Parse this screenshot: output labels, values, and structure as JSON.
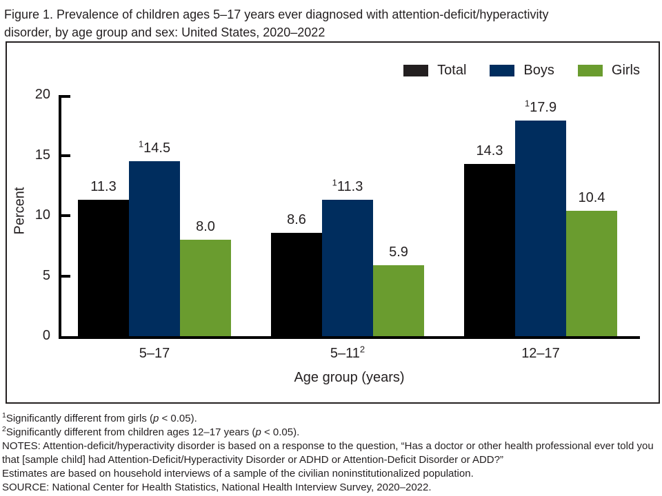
{
  "header": {
    "line1": "Figure 1. Prevalence of children ages 5–17 years ever diagnosed with attention-deficit/hyperactivity",
    "line2": "disorder, by age group and sex: United States, 2020–2022"
  },
  "colors": {
    "total_bar": "#000000",
    "total_legend_swatch": "#231f20",
    "boys": "#002d5e",
    "girls": "#6a9c2f",
    "axis": "#000000",
    "border": "#231f20",
    "text": "#231f20"
  },
  "chart_data": {
    "type": "bar",
    "title": "Figure 1. Prevalence of children ages 5–17 years ever diagnosed with attention-deficit/hyperactivity disorder, by age group and sex: United States, 2020–2022",
    "xlabel": "Age group (years)",
    "ylabel": "Percent",
    "ylim": [
      0,
      20
    ],
    "yticks": [
      0,
      5,
      10,
      15,
      20
    ],
    "grid": false,
    "legend_position": "top-right",
    "categories": [
      {
        "label": "5–17"
      },
      {
        "label": "5–11",
        "sup": "2"
      },
      {
        "label": "12–17"
      }
    ],
    "series": [
      {
        "name": "Total",
        "color": "#000000",
        "legend_color": "#231f20",
        "data": [
          {
            "v": 11.3,
            "label": "11.3"
          },
          {
            "v": 8.6,
            "label": "8.6"
          },
          {
            "v": 14.3,
            "label": "14.3"
          }
        ]
      },
      {
        "name": "Boys",
        "color": "#002d5e",
        "legend_color": "#002d5e",
        "data": [
          {
            "v": 14.5,
            "label": "14.5",
            "sup": "1"
          },
          {
            "v": 11.3,
            "label": "11.3",
            "sup": "1"
          },
          {
            "v": 17.9,
            "label": "17.9",
            "sup": "1"
          }
        ]
      },
      {
        "name": "Girls",
        "color": "#6a9c2f",
        "legend_color": "#6a9c2f",
        "data": [
          {
            "v": 8.0,
            "label": "8.0"
          },
          {
            "v": 5.9,
            "label": "5.9"
          },
          {
            "v": 10.4,
            "label": "10.4"
          }
        ]
      }
    ]
  },
  "footnotes": [
    {
      "sup": "1",
      "segments": [
        {
          "t": "Significantly different from girls ("
        },
        {
          "t": "p",
          "italic": true
        },
        {
          "t": " < 0.05)."
        }
      ]
    },
    {
      "sup": "2",
      "segments": [
        {
          "t": "Significantly different from children ages 12–17 years ("
        },
        {
          "t": "p",
          "italic": true
        },
        {
          "t": " < 0.05)."
        }
      ]
    },
    {
      "segments": [
        {
          "t": "NOTES: Attention-deficit/hyperactivity disorder is based on a response to the question, “Has a doctor or other health professional ever told you that [sample child] had Attention-Deficit/Hyperactivity Disorder or ADHD or Attention-Deficit Disorder or ADD?”"
        }
      ]
    },
    {
      "segments": [
        {
          "t": "Estimates are based on household interviews of a sample of the civilian noninstitutionalized population."
        }
      ]
    },
    {
      "segments": [
        {
          "t": "SOURCE: National Center for Health Statistics, National Health Interview Survey, 2020–2022."
        }
      ]
    }
  ]
}
